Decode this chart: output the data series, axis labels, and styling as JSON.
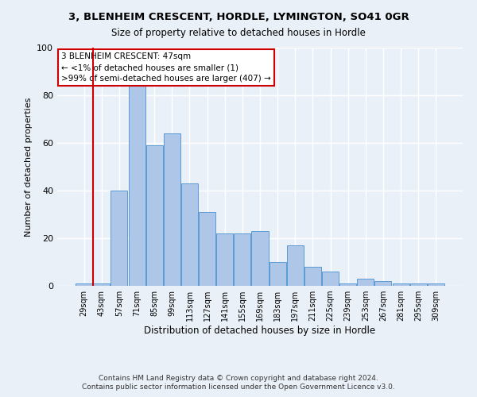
{
  "title": "3, BLENHEIM CRESCENT, HORDLE, LYMINGTON, SO41 0GR",
  "subtitle": "Size of property relative to detached houses in Hordle",
  "xlabel": "Distribution of detached houses by size in Hordle",
  "ylabel": "Number of detached properties",
  "categories": [
    "29sqm",
    "43sqm",
    "57sqm",
    "71sqm",
    "85sqm",
    "99sqm",
    "113sqm",
    "127sqm",
    "141sqm",
    "155sqm",
    "169sqm",
    "183sqm",
    "197sqm",
    "211sqm",
    "225sqm",
    "239sqm",
    "253sqm",
    "267sqm",
    "281sqm",
    "295sqm",
    "309sqm"
  ],
  "values": [
    1,
    1,
    40,
    84,
    59,
    64,
    43,
    31,
    22,
    22,
    23,
    10,
    17,
    8,
    6,
    1,
    3,
    2,
    1,
    1,
    1
  ],
  "bar_color": "#aec6e8",
  "bar_edge_color": "#5b9bd5",
  "background_color": "#eaf0f8",
  "grid_color": "#ffffff",
  "marker_index": 1,
  "marker_color": "#cc0000",
  "annotation_line1": "3 BLENHEIM CRESCENT: 47sqm",
  "annotation_line2": "← <1% of detached houses are smaller (1)",
  "annotation_line3": ">99% of semi-detached houses are larger (407) →",
  "annotation_box_color": "#ffffff",
  "annotation_box_edge": "#cc0000",
  "ylim": [
    0,
    100
  ],
  "yticks": [
    0,
    20,
    40,
    60,
    80,
    100
  ],
  "footer_line1": "Contains HM Land Registry data © Crown copyright and database right 2024.",
  "footer_line2": "Contains public sector information licensed under the Open Government Licence v3.0."
}
